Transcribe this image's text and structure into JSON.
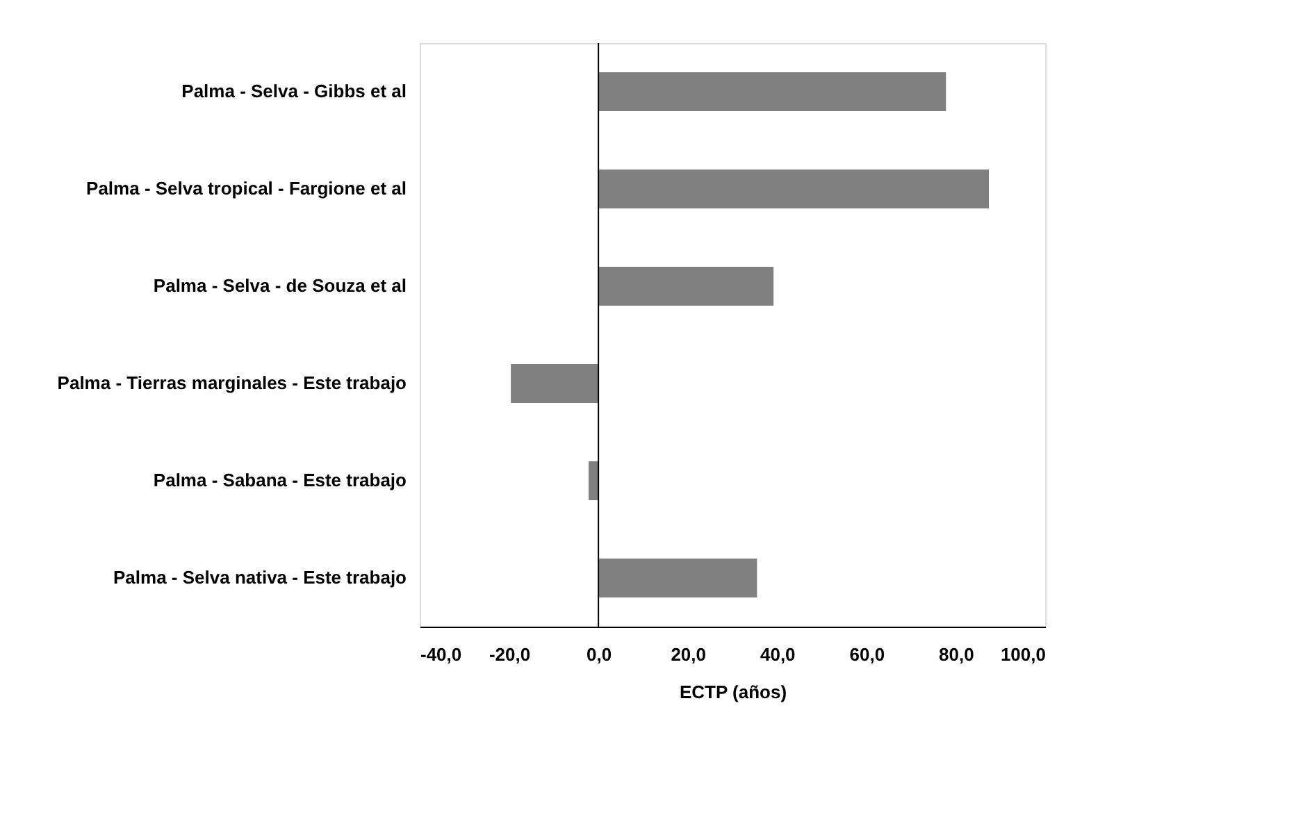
{
  "chart_data": {
    "type": "bar",
    "orientation": "horizontal",
    "xlabel": "ECTP (años)",
    "categories": [
      "Palma - Selva - Gibbs et al",
      "Palma - Selva tropical - Fargione et al",
      "Palma - Selva - de Souza et al",
      "Palma - Tierras marginales - Este trabajo",
      "Palma - Sabana - Este trabajo",
      "Palma - Selva nativa - Este trabajo"
    ],
    "values": [
      77.8,
      87.4,
      39.2,
      -19.6,
      -2.2,
      35.5
    ],
    "color": "#808080",
    "xlim": [
      -40,
      100
    ],
    "xticks": [
      {
        "value": -40,
        "label": "-40,0"
      },
      {
        "value": -20,
        "label": "-20,0"
      },
      {
        "value": 0,
        "label": "0,0"
      },
      {
        "value": 20,
        "label": "20,0"
      },
      {
        "value": 40,
        "label": "40,0"
      },
      {
        "value": 60,
        "label": "60,0"
      },
      {
        "value": 80,
        "label": "80,0"
      },
      {
        "value": 100,
        "label": "100,0"
      }
    ],
    "ref_lines": [
      {
        "axis": "x",
        "value": 0,
        "label": null,
        "color": "#000000"
      }
    ],
    "grid": false
  }
}
